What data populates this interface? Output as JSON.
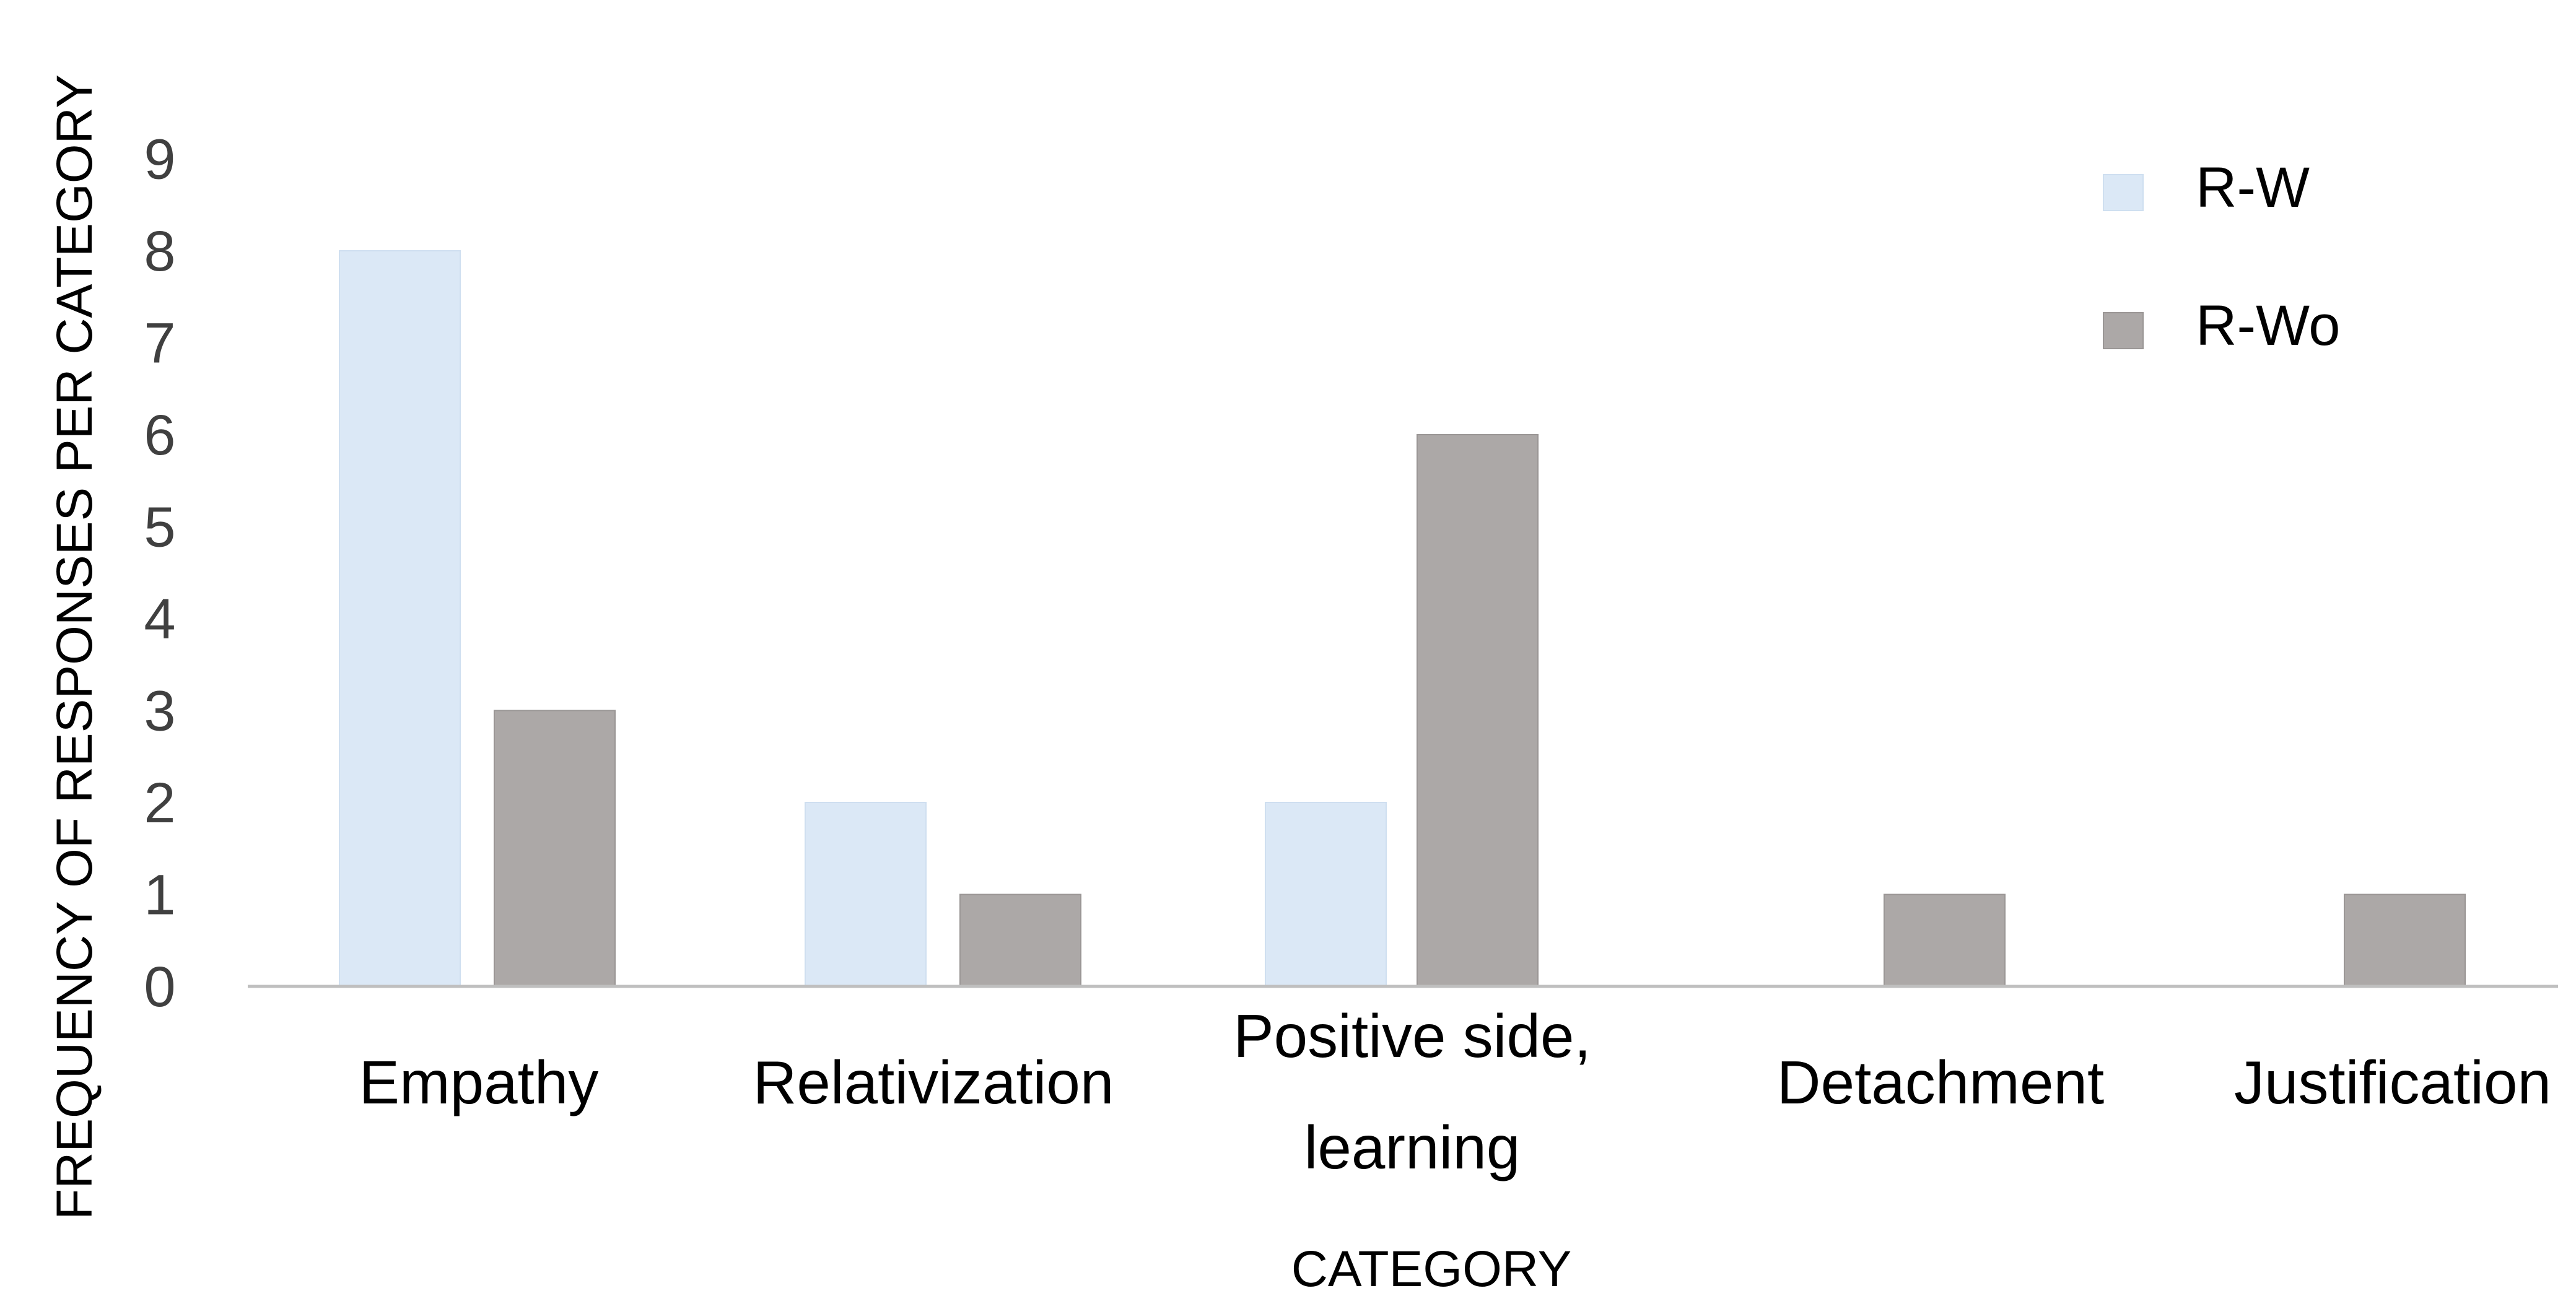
{
  "chart_data": {
    "type": "bar",
    "title": "",
    "xlabel": "CATEGORY",
    "ylabel": "FREQUENCY OF RESPONSES PER CATEGORY",
    "categories": [
      [
        "Empathy"
      ],
      [
        "Relativization"
      ],
      [
        "Positive side,",
        "learning"
      ],
      [
        "Detachment"
      ],
      [
        "Justification"
      ]
    ],
    "series": [
      {
        "name": "R-W",
        "color": "#dbe8f6",
        "values": [
          8,
          2,
          2,
          0,
          0
        ]
      },
      {
        "name": "R-Wo",
        "color": "#aca8a7",
        "values": [
          3,
          1,
          6,
          1,
          1
        ]
      }
    ],
    "ylim": [
      0,
      9
    ],
    "yticks": [
      0,
      1,
      2,
      3,
      4,
      5,
      6,
      7,
      8,
      9
    ],
    "grid": false,
    "legend_position": "top-right",
    "axis_color": "#bfbfbf"
  }
}
